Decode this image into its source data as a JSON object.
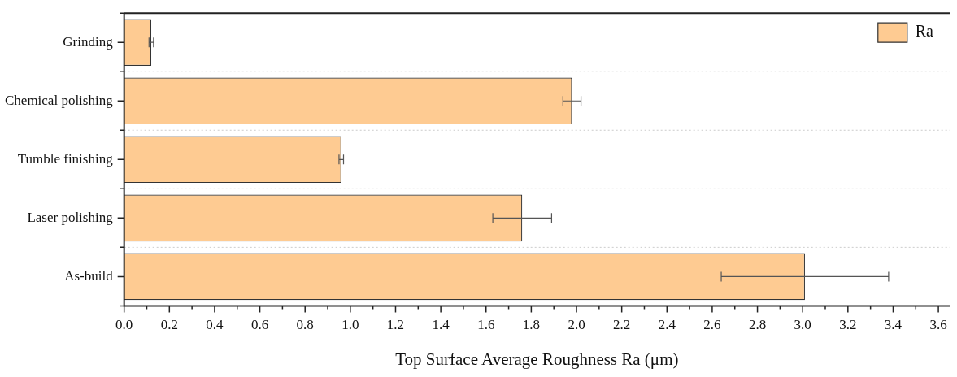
{
  "chart_data": {
    "type": "bar",
    "orientation": "horizontal",
    "xlabel": "Top Surface Average Roughness Ra (μm)",
    "categories": [
      "Grinding",
      "Chemical polishing",
      "Tumble finishing",
      "Laser polishing",
      "As-build"
    ],
    "series": [
      {
        "name": "Ra",
        "color": "#fecb92",
        "values": [
          0.12,
          1.98,
          0.96,
          1.76,
          3.01
        ],
        "errors": [
          0.01,
          0.04,
          0.01,
          0.13,
          0.37
        ]
      }
    ],
    "xlim": [
      0,
      3.65
    ],
    "xticks": [
      {
        "value": 0,
        "label": "0.0"
      },
      {
        "value": 0.1,
        "label": null
      },
      {
        "value": 0.2,
        "label": "0.2"
      },
      {
        "value": 0.3,
        "label": null
      },
      {
        "value": 0.4,
        "label": "0.4"
      },
      {
        "value": 0.5,
        "label": null
      },
      {
        "value": 0.6,
        "label": "0.6"
      },
      {
        "value": 0.7,
        "label": null
      },
      {
        "value": 0.8,
        "label": "0.8"
      },
      {
        "value": 0.9,
        "label": null
      },
      {
        "value": 1,
        "label": "1.0"
      },
      {
        "value": 1.1,
        "label": null
      },
      {
        "value": 1.2,
        "label": "1.2"
      },
      {
        "value": 1.3,
        "label": null
      },
      {
        "value": 1.4,
        "label": "1.4"
      },
      {
        "value": 1.5,
        "label": null
      },
      {
        "value": 1.6,
        "label": "1.6"
      },
      {
        "value": 1.7,
        "label": null
      },
      {
        "value": 1.8,
        "label": "1.8"
      },
      {
        "value": 1.9,
        "label": null
      },
      {
        "value": 2,
        "label": "2.0"
      },
      {
        "value": 2.1,
        "label": null
      },
      {
        "value": 2.2,
        "label": "2.2"
      },
      {
        "value": 2.3,
        "label": null
      },
      {
        "value": 2.4,
        "label": "2.4"
      },
      {
        "value": 2.5,
        "label": null
      },
      {
        "value": 2.6,
        "label": "2.6"
      },
      {
        "value": 2.7,
        "label": null
      },
      {
        "value": 2.8,
        "label": "2.8"
      },
      {
        "value": 2.9,
        "label": null
      },
      {
        "value": 3,
        "label": "3.0"
      },
      {
        "value": 3.1,
        "label": null
      },
      {
        "value": 3.2,
        "label": "3.2"
      },
      {
        "value": 3.3,
        "label": null
      },
      {
        "value": 3.4,
        "label": "3.4"
      },
      {
        "value": 3.5,
        "label": null
      },
      {
        "value": 3.6,
        "label": "3.6"
      }
    ],
    "grid": "y",
    "legend": "top right"
  }
}
